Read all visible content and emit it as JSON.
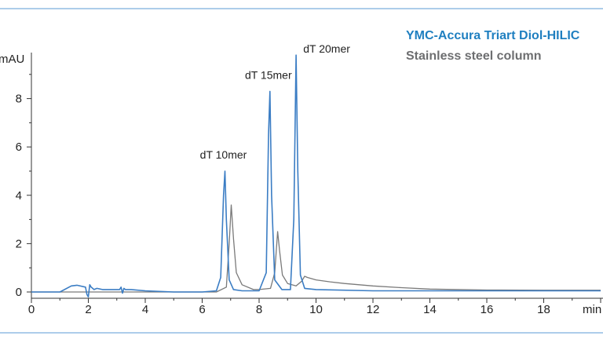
{
  "legend": {
    "title": "YMC-Accura Triart Diol-HILIC",
    "subtitle": "Stainless steel column",
    "title_color": "#1f7fc0",
    "subtitle_color": "#6d6e70"
  },
  "chart_data": {
    "type": "line",
    "ylabel": "mAU",
    "xlabel": "min",
    "xlim": [
      0,
      20
    ],
    "ylim": [
      -0.4,
      10
    ],
    "xticks": [
      "0",
      "2",
      "4",
      "6",
      "8",
      "10",
      "12",
      "14",
      "16",
      "18"
    ],
    "yticks": [
      "0",
      "2",
      "4",
      "6",
      "8"
    ],
    "series": [
      {
        "color": "#3b7dc4",
        "x": [
          0,
          1.0,
          1.4,
          1.6,
          1.9,
          1.95,
          2.0,
          2.05,
          2.1,
          2.2,
          2.3,
          2.5,
          3.1,
          3.15,
          3.2,
          3.25,
          3.3,
          3.5,
          4,
          5,
          6,
          6.5,
          6.65,
          6.75,
          6.8,
          6.85,
          6.95,
          7.1,
          7.4,
          8.0,
          8.25,
          8.33,
          8.38,
          8.44,
          8.55,
          8.8,
          9.1,
          9.22,
          9.3,
          9.36,
          9.45,
          9.6,
          10,
          12,
          16,
          20
        ],
        "values": [
          0.0,
          0.0,
          0.25,
          0.28,
          0.2,
          -0.1,
          -0.2,
          0.3,
          0.2,
          0.1,
          0.15,
          0.1,
          0.1,
          0.2,
          -0.05,
          0.15,
          0.1,
          0.1,
          0.05,
          0.0,
          0.0,
          0.05,
          0.6,
          4.0,
          5.0,
          3.0,
          0.5,
          0.1,
          0.05,
          0.05,
          0.8,
          6.5,
          8.3,
          4.0,
          0.5,
          0.1,
          0.1,
          3.0,
          9.8,
          5.0,
          0.7,
          0.15,
          0.1,
          0.05,
          0.05,
          0.05
        ]
      },
      {
        "color": "#7a7a7a",
        "x": [
          0,
          6.5,
          6.85,
          6.95,
          7.02,
          7.1,
          7.2,
          7.4,
          7.8,
          8.0,
          8.4,
          8.55,
          8.65,
          8.72,
          8.82,
          9.0,
          9.3,
          9.5,
          9.6,
          9.7,
          10,
          10.5,
          11,
          12,
          13,
          14,
          16,
          18,
          20
        ],
        "values": [
          0.0,
          0.0,
          0.2,
          2.0,
          3.6,
          2.2,
          0.8,
          0.3,
          0.1,
          0.1,
          0.15,
          0.8,
          2.5,
          1.7,
          0.7,
          0.35,
          0.25,
          0.45,
          0.65,
          0.6,
          0.5,
          0.42,
          0.35,
          0.25,
          0.18,
          0.12,
          0.08,
          0.07,
          0.07
        ]
      }
    ],
    "annotations": [
      {
        "text": "dT 10mer",
        "x": 6.8,
        "y": 5.0
      },
      {
        "text": "dT 15mer",
        "x": 8.38,
        "y": 8.3
      },
      {
        "text": "dT 20mer",
        "x": 9.3,
        "y": 9.8
      }
    ]
  }
}
